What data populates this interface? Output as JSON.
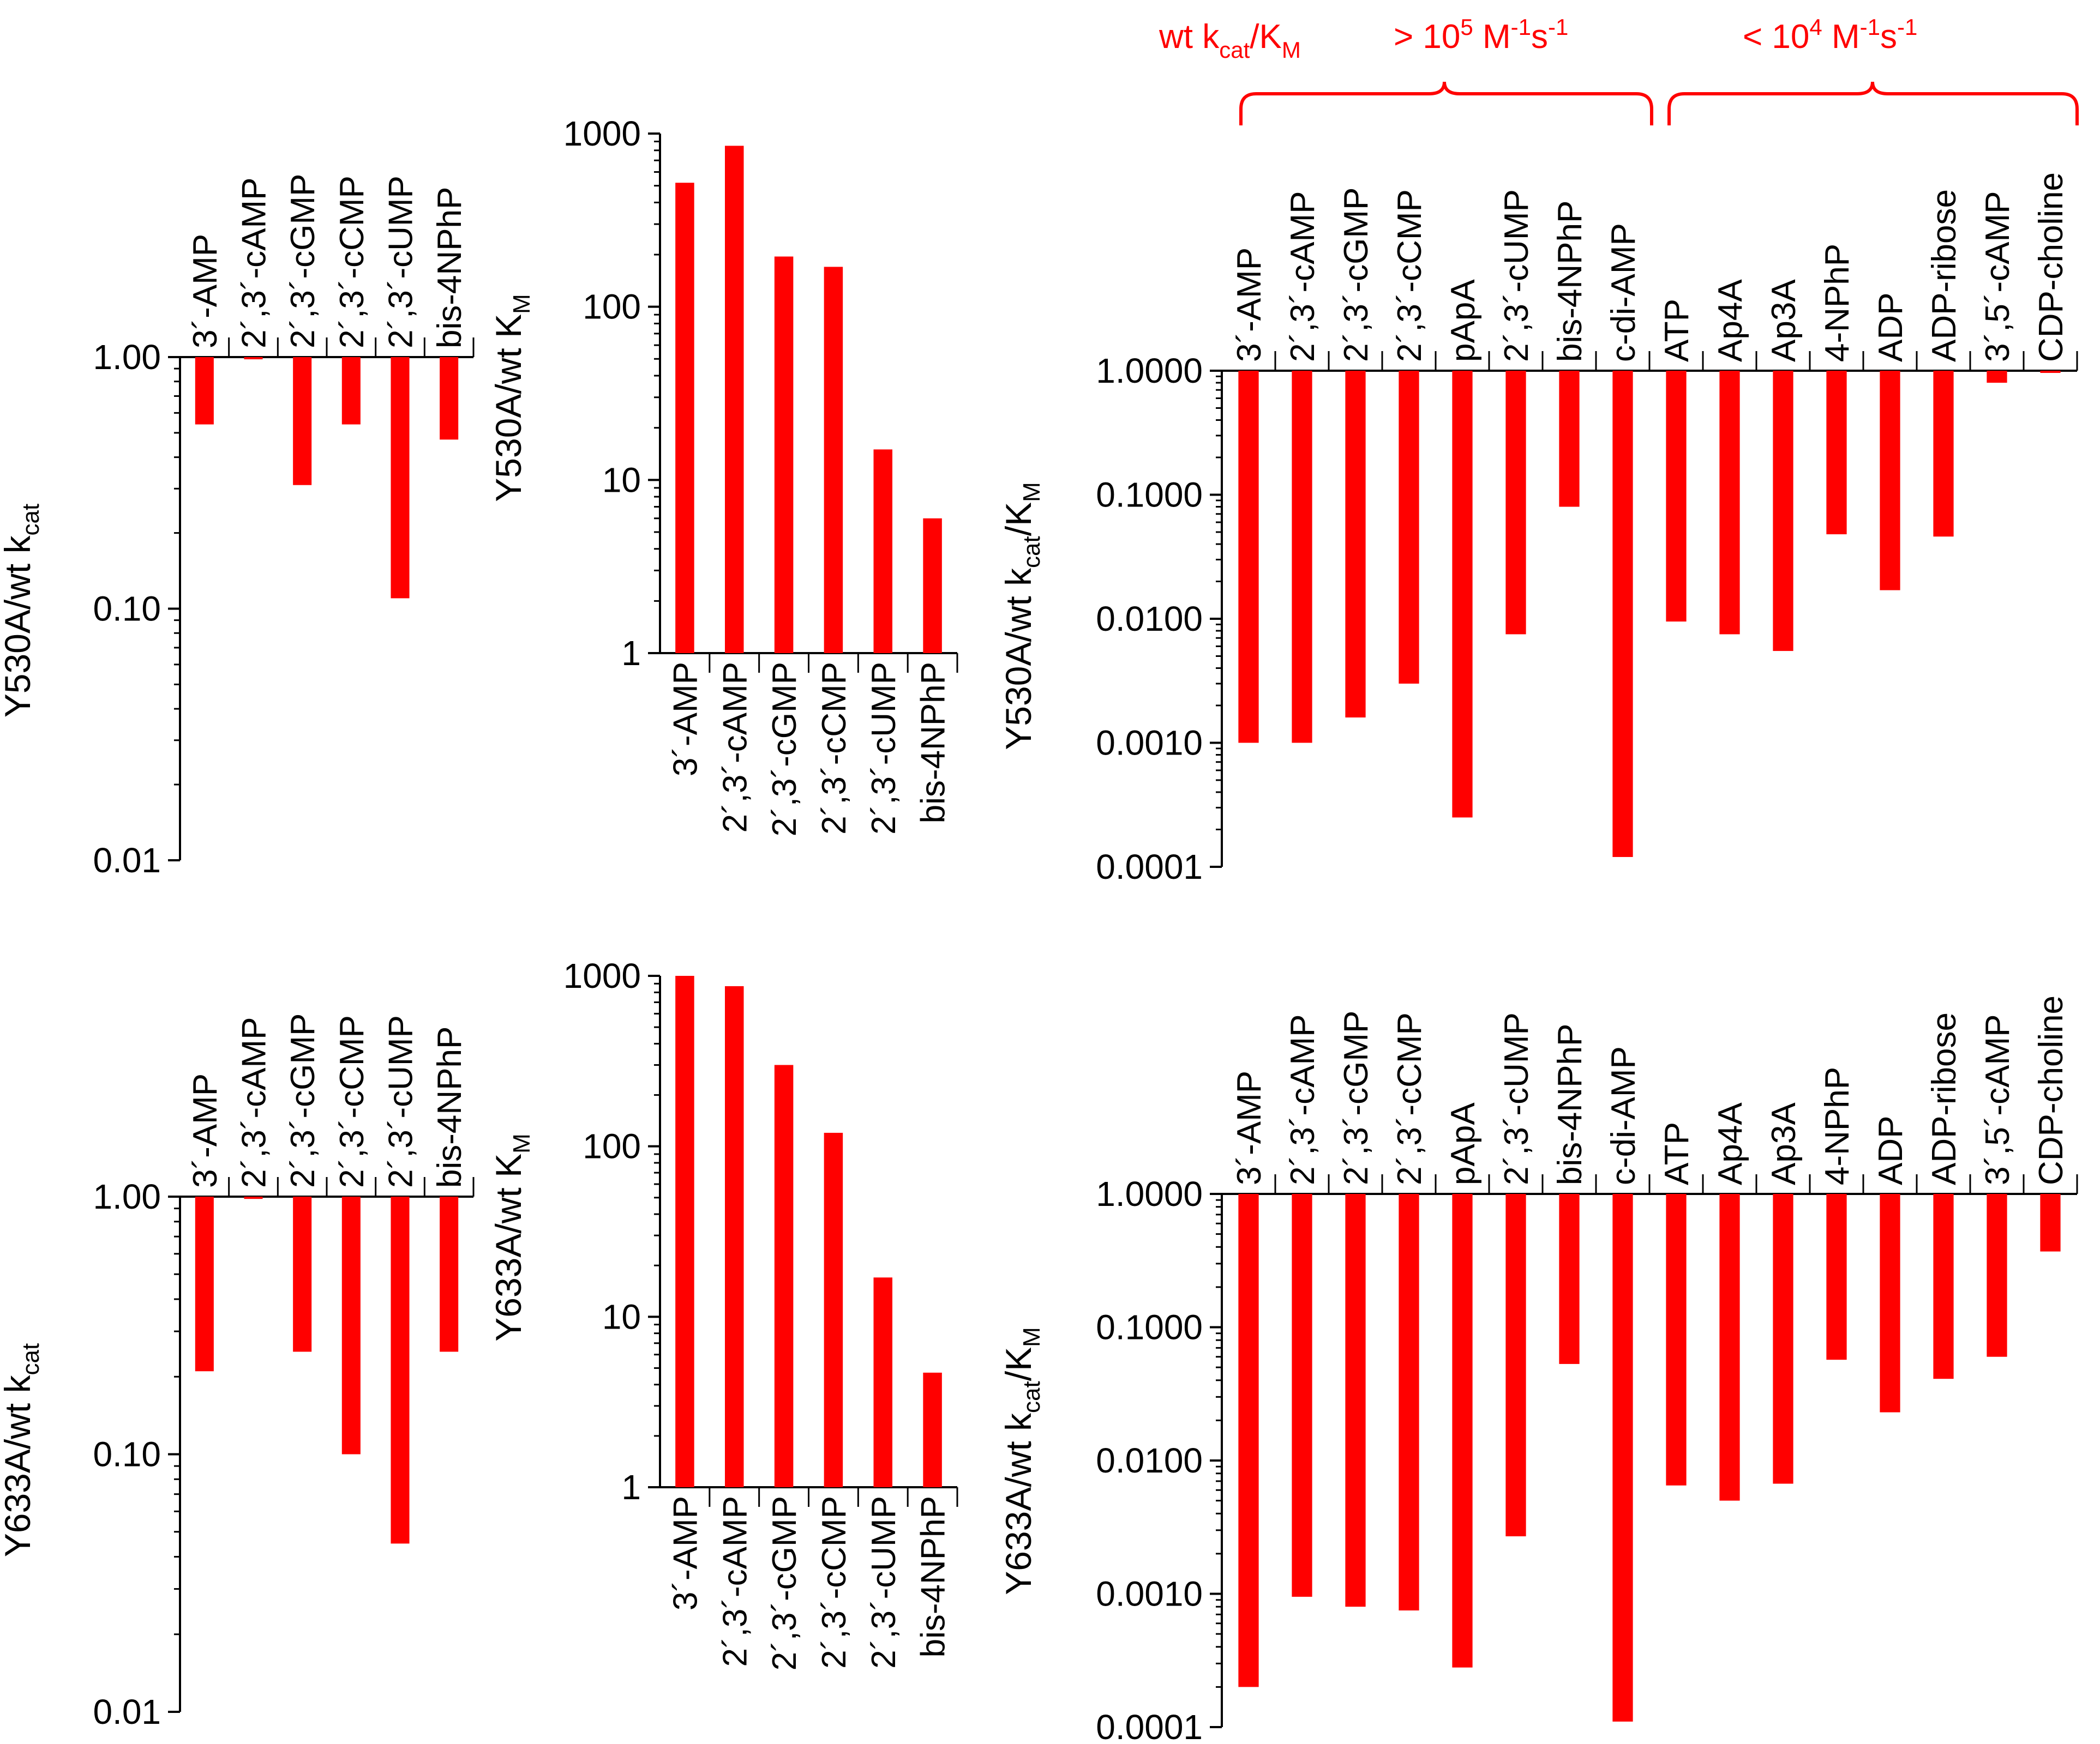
{
  "colors": {
    "bar": "#ff0000",
    "axis": "#000000",
    "annotation": "#ff0000"
  },
  "chart_data": [
    {
      "type": "bar",
      "scale": "log",
      "orientation": "downward",
      "title": "",
      "ylabel": {
        "main": "Y530A/wt k",
        "sub": "cat"
      },
      "ylim": [
        0.01,
        1
      ],
      "yticks": [
        "1.00",
        "0.10",
        "0.01"
      ],
      "categories": [
        "3´-AMP",
        "2´,3´-cAMP",
        "2´,3´-cGMP",
        "2´,3´-cCMP",
        "2´,3´-cUMP",
        "bis-4NPhP"
      ],
      "values": [
        0.54,
        0.98,
        0.31,
        0.54,
        0.11,
        0.47
      ]
    },
    {
      "type": "bar",
      "scale": "log",
      "orientation": "upward",
      "title": "",
      "ylabel": {
        "main": "Y530A/wt K",
        "sub": "M"
      },
      "ylim": [
        1,
        1000
      ],
      "yticks": [
        "1000",
        "100",
        "10",
        "1"
      ],
      "categories": [
        "3´-AMP",
        "2´,3´-cAMP",
        "2´,3´-cGMP",
        "2´,3´-cCMP",
        "2´,3´-cUMP",
        "bis-4NPhP"
      ],
      "values": [
        520,
        850,
        195,
        170,
        15,
        6
      ]
    },
    {
      "type": "bar",
      "scale": "log",
      "orientation": "downward",
      "title": "",
      "ylabel": {
        "main": "Y530A/wt k",
        "sub1": "cat",
        "mid": "/K",
        "sub2": "M"
      },
      "ylim": [
        0.0001,
        1
      ],
      "yticks": [
        "1.0000",
        "0.1000",
        "0.0100",
        "0.0010",
        "0.0001"
      ],
      "categories": [
        "3´-AMP",
        "2´,3´-cAMP",
        "2´,3´-cGMP",
        "2´,3´-cCMP",
        "pApA",
        "2´,3´-cUMP",
        "bis-4NPhP",
        "c-di-AMP",
        "ATP",
        "Ap4A",
        "Ap3A",
        "4-NPhP",
        "ADP",
        "ADP-ribose",
        "3´,5´-cAMP",
        "CDP-choline"
      ],
      "values": [
        0.001,
        0.001,
        0.0016,
        0.003,
        0.00025,
        0.0075,
        0.08,
        0.00012,
        0.0095,
        0.0075,
        0.0055,
        0.048,
        0.017,
        0.046,
        0.8,
        0.96
      ]
    },
    {
      "type": "bar",
      "scale": "log",
      "orientation": "downward",
      "title": "",
      "ylabel": {
        "main": "Y633A/wt k",
        "sub": "cat"
      },
      "ylim": [
        0.01,
        1
      ],
      "yticks": [
        "1.00",
        "0.10",
        "0.01"
      ],
      "categories": [
        "3´-AMP",
        "2´,3´-cAMP",
        "2´,3´-cGMP",
        "2´,3´-cCMP",
        "2´,3´-cUMP",
        "bis-4NPhP"
      ],
      "values": [
        0.21,
        0.98,
        0.25,
        0.1,
        0.045,
        0.25
      ]
    },
    {
      "type": "bar",
      "scale": "log",
      "orientation": "upward",
      "title": "",
      "ylabel": {
        "main": "Y633A/wt K",
        "sub": "M"
      },
      "ylim": [
        1,
        1000
      ],
      "yticks": [
        "1000",
        "100",
        "10",
        "1"
      ],
      "categories": [
        "3´-AMP",
        "2´,3´-cAMP",
        "2´,3´-cGMP",
        "2´,3´-cCMP",
        "2´,3´-cUMP",
        "bis-4NPhP"
      ],
      "values": [
        1000,
        870,
        300,
        120,
        17,
        4.7
      ]
    },
    {
      "type": "bar",
      "scale": "log",
      "orientation": "downward",
      "title": "",
      "ylabel": {
        "main": "Y633A/wt k",
        "sub1": "cat",
        "mid": "/K",
        "sub2": "M"
      },
      "ylim": [
        0.0001,
        1
      ],
      "yticks": [
        "1.0000",
        "0.1000",
        "0.0100",
        "0.0010",
        "0.0001"
      ],
      "categories": [
        "3´-AMP",
        "2´,3´-cAMP",
        "2´,3´-cGMP",
        "2´,3´-cCMP",
        "pApA",
        "2´,3´-cUMP",
        "bis-4NPhP",
        "c-di-AMP",
        "ATP",
        "Ap4A",
        "Ap3A",
        "4-NPhP",
        "ADP",
        "ADP-ribose",
        "3´,5´-cAMP",
        "CDP-choline"
      ],
      "values": [
        0.0002,
        0.00095,
        0.0008,
        0.00075,
        0.00028,
        0.0027,
        0.053,
        0.00011,
        0.0065,
        0.005,
        0.0067,
        0.057,
        0.023,
        0.041,
        0.06,
        0.37
      ]
    }
  ],
  "annotations": {
    "wt_label": {
      "main": "wt k",
      "sub1": "cat",
      "mid": "/K",
      "sub2": "M"
    },
    "high": {
      "text": "> 10",
      "exp": "5",
      "unit": " M",
      "unit_exp": "-1",
      "s": "s",
      "s_exp": "-1"
    },
    "low": {
      "text": "< 10",
      "exp": "4",
      "unit": " M",
      "unit_exp": "-1",
      "s": "s",
      "s_exp": "-1"
    }
  }
}
